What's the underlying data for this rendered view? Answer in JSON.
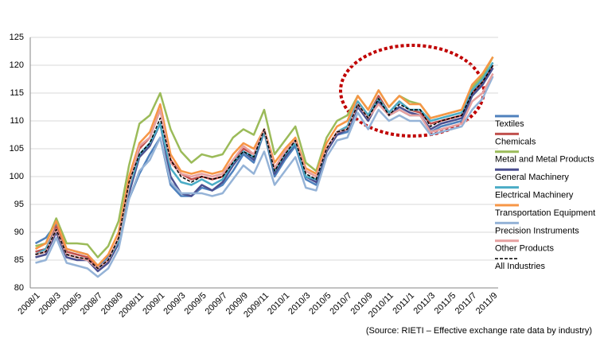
{
  "chart_data": {
    "type": "line",
    "categories": [
      "2008/1",
      null,
      "2008/3",
      null,
      "2008/5",
      null,
      "2008/7",
      null,
      "2008/9",
      null,
      "2008/11",
      null,
      "2009/1",
      null,
      "2009/3",
      null,
      "2009/5",
      null,
      "2009/7",
      null,
      "2009/9",
      null,
      "2009/11",
      null,
      "2010/1",
      null,
      "2010/3",
      null,
      "2010/5",
      null,
      "2010/7",
      null,
      "2010/9",
      null,
      "2010/11",
      null,
      "2011/1",
      null,
      "2011/3",
      null,
      "2011/5",
      null,
      "2011/7",
      null,
      "2011/9"
    ],
    "series": [
      {
        "name": "Textiles",
        "color": "#4f81bd",
        "values": [
          88,
          89,
          91.5,
          87,
          86.5,
          86,
          84,
          85.5,
          88,
          96,
          100.5,
          104,
          107,
          98.5,
          96.5,
          96.5,
          98,
          97.5,
          98.5,
          101,
          104,
          102.5,
          108,
          100,
          103,
          105.5,
          99.5,
          98.5,
          104.5,
          107.5,
          108,
          112.5,
          110.5,
          113.5,
          111,
          112,
          111,
          111,
          108,
          109,
          109.5,
          110,
          114.5,
          116.5,
          119.5
        ]
      },
      {
        "name": "Chemicals",
        "color": "#c0504d",
        "values": [
          86.5,
          87,
          91,
          86.5,
          86,
          85.5,
          83.5,
          85,
          89,
          99,
          105,
          107,
          112,
          103,
          100.5,
          99.5,
          100,
          99.5,
          100,
          103,
          105,
          104,
          108.5,
          101.5,
          104.5,
          106.5,
          101,
          100,
          105,
          108,
          109,
          113.5,
          111,
          114.5,
          111.5,
          113.5,
          112,
          111.5,
          109.5,
          110,
          110.5,
          111,
          115,
          117,
          120
        ]
      },
      {
        "name": "Metal and Metal Products",
        "color": "#9bbb59",
        "values": [
          87.5,
          88,
          92.5,
          88,
          88,
          87.8,
          85.5,
          87.5,
          92,
          102,
          109.5,
          111,
          115,
          108.5,
          104.5,
          102.5,
          104,
          103.5,
          104,
          107,
          108.5,
          107.5,
          112,
          104,
          106.5,
          109,
          102.5,
          101,
          107,
          110,
          111,
          114.5,
          112,
          115.5,
          112.5,
          114.5,
          113.5,
          113,
          110.5,
          111,
          111.5,
          112,
          116,
          118,
          121.5
        ]
      },
      {
        "name": "General Machinery",
        "color": "#4b4f8f",
        "values": [
          85.5,
          86,
          90,
          85.5,
          85,
          85,
          83,
          84.5,
          88,
          97,
          103.5,
          105.5,
          109.5,
          100,
          97,
          96.5,
          98.5,
          97.5,
          99,
          102,
          104.5,
          103,
          108,
          100.5,
          103.5,
          106,
          100,
          99,
          104.5,
          107.5,
          108.5,
          112.5,
          110,
          113.5,
          111,
          112.5,
          111.5,
          111,
          108.5,
          109.5,
          110,
          110.5,
          114.5,
          116.5,
          119.5
        ]
      },
      {
        "name": "Electrical Machinery",
        "color": "#4bacc6",
        "values": [
          86,
          87,
          90.5,
          86,
          85.5,
          85,
          83.5,
          85,
          88.5,
          98,
          104,
          106,
          109.5,
          101.5,
          99,
          98.5,
          99.5,
          98.5,
          99.5,
          102.5,
          104.5,
          103.5,
          108,
          101,
          104,
          106,
          100,
          99.5,
          105,
          108,
          109,
          113.5,
          111,
          114,
          111.5,
          113.5,
          112,
          112,
          110,
          110.5,
          111,
          111.5,
          115.5,
          117.5,
          120.5
        ]
      },
      {
        "name": "Transportation Equipment",
        "color": "#f79646",
        "values": [
          87,
          88,
          92,
          87,
          86.5,
          86,
          84,
          86,
          90,
          100,
          106,
          108,
          113,
          104,
          101,
          100.5,
          101,
          100.5,
          101,
          104,
          106,
          105,
          108.5,
          102.5,
          105,
          107,
          101.5,
          100.5,
          106,
          109,
          110,
          114.5,
          112,
          115.5,
          112.5,
          114.5,
          113,
          113,
          110.5,
          111,
          111.5,
          112,
          116.5,
          118.5,
          121.5
        ]
      },
      {
        "name": "Precision Instruments",
        "color": "#95b3d7",
        "values": [
          84.5,
          85,
          89,
          84.5,
          84,
          83.5,
          82,
          83.5,
          87,
          96,
          101,
          103,
          107,
          99,
          97,
          97,
          97,
          96.5,
          97,
          99.5,
          102,
          100.5,
          104.5,
          98.5,
          101,
          103.5,
          98,
          97.5,
          103.5,
          106.5,
          107,
          111.5,
          108.5,
          112,
          110,
          111,
          110,
          110,
          107.5,
          108,
          108.5,
          109,
          112,
          114,
          118
        ]
      },
      {
        "name": "Other Products",
        "color": "#e6a0a0",
        "values": [
          86,
          86.5,
          90.5,
          86,
          85.5,
          85,
          83.5,
          85,
          89,
          98.5,
          105.5,
          107,
          112,
          102.5,
          100.5,
          100,
          100.5,
          100,
          100.5,
          103,
          105.5,
          104,
          108.5,
          101.5,
          104.5,
          106.5,
          101,
          100,
          105,
          108,
          108.5,
          113,
          110.5,
          113,
          111,
          112,
          111,
          111,
          108,
          108.5,
          109,
          109.5,
          113.5,
          115,
          118.5
        ]
      },
      {
        "name": "All Industries",
        "color": "#000000",
        "dash": true,
        "values": [
          86,
          86.5,
          90.5,
          86,
          85.5,
          85.2,
          83.5,
          85,
          89,
          99,
          104,
          106,
          110.5,
          103,
          100,
          99,
          100,
          99.5,
          100,
          102.5,
          104.5,
          103.5,
          108.5,
          101,
          104,
          106.5,
          100.5,
          99.5,
          105,
          108,
          108.5,
          113,
          110.5,
          114,
          111,
          113,
          112,
          112,
          109,
          110,
          110.5,
          111,
          115,
          117,
          120
        ]
      }
    ],
    "ylim": [
      80,
      125
    ],
    "yticks": [
      80,
      85,
      90,
      95,
      100,
      105,
      110,
      115,
      120,
      125
    ],
    "grid": true,
    "legend": "right",
    "source": "(Source: RIETI – Effective exchange rate data by industry)"
  }
}
